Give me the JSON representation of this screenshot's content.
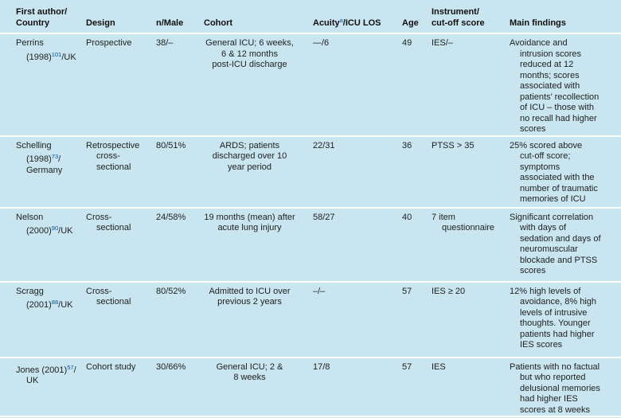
{
  "colors": {
    "table_background": "#c9e5ef",
    "row_separator": "#fbfeff",
    "text": "#1f1f1f",
    "reference_superscript_blue": "#00539f"
  },
  "table": {
    "header": {
      "author": [
        {
          "t": "First author/\nCountry"
        }
      ],
      "design": [
        {
          "t": "Design"
        }
      ],
      "n_male": [
        {
          "t": "n/Male"
        }
      ],
      "cohort": [
        {
          "t": "Cohort"
        }
      ],
      "acuity": [
        {
          "t": "Acuity"
        },
        {
          "sup": "a"
        },
        {
          "t": "/ICU LOS"
        }
      ],
      "age": [
        {
          "t": "Age"
        }
      ],
      "instrument": [
        {
          "t": "Instrument/\ncut-off score"
        }
      ],
      "findings": [
        {
          "t": "Main findings"
        }
      ]
    },
    "rows": [
      {
        "author": [
          {
            "t": "Perrins\n(1998)"
          },
          {
            "sup": "101"
          },
          {
            "t": "/UK"
          }
        ],
        "design": "Prospective",
        "n_male": "38/–",
        "cohort": "General ICU; 6 weeks,\n6 & 12 months\npost-ICU discharge",
        "acuity": "—/6",
        "age": "49",
        "instrument": "IES/–",
        "findings": "Avoidance and\nintrusion scores\nreduced at 12\nmonths; scores\nassociated with\npatients’ recollection\nof ICU – those with\nno recall had higher\nscores"
      },
      {
        "author": [
          {
            "t": "Schelling\n(1998)"
          },
          {
            "sup": "73"
          },
          {
            "t": "/\nGermany"
          }
        ],
        "design": "Retrospective\ncross-\nsectional",
        "n_male": "80/51%",
        "cohort": "ARDS; patients\ndischarged over 10\nyear period",
        "acuity": "22/31",
        "age": "36",
        "instrument": "PTSS > 35",
        "findings": "25% scored above\ncut-off score;\nsymptoms\nassociated with the\nnumber of traumatic\nmemories of ICU"
      },
      {
        "author": [
          {
            "t": "Nelson\n(2000)"
          },
          {
            "sup": "90"
          },
          {
            "t": "/UK"
          }
        ],
        "design": "Cross-\nsectional",
        "n_male": "24/58%",
        "cohort": "19 months (mean) after\nacute lung injury",
        "acuity": "58/27",
        "age": "40",
        "instrument": "7 item\nquestionnaire",
        "findings": "Significant correlation\nwith days of\nsedation and days of\nneuromuscular\nblockade and PTSS\nscores"
      },
      {
        "author": [
          {
            "t": "Scragg\n(2001)"
          },
          {
            "sup": "88"
          },
          {
            "t": "/UK"
          }
        ],
        "design": "Cross-\nsectional",
        "n_male": "80/52%",
        "cohort": "Admitted to ICU over\nprevious 2 years",
        "acuity": "–/–",
        "age": "57",
        "instrument": "IES ≥ 20",
        "findings": "12% high levels of\navoidance, 8% high\nlevels of intrusive\nthoughts. Younger\npatients had higher\nIES scores"
      },
      {
        "author": [
          {
            "t": "Jones (2001)"
          },
          {
            "sup": "57"
          },
          {
            "t": "/\nUK"
          }
        ],
        "design": "Cohort study",
        "n_male": "30/66%",
        "cohort": "General ICU; 2 &\n8 weeks",
        "acuity": "17/8",
        "age": "57",
        "instrument": "IES",
        "findings": "Patients with no factual\nbut who reported\ndelusional memories\nhad higher IES\nscores at 8 weeks"
      }
    ]
  }
}
